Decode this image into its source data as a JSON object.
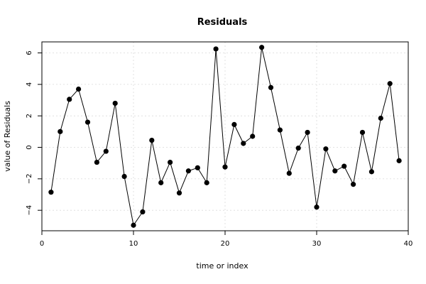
{
  "chart_data": {
    "type": "line",
    "title": "Residuals",
    "xlabel": "time or index",
    "ylabel": "value of Residuals",
    "xlim": [
      0,
      40
    ],
    "ylim": [
      -5.3,
      6.7
    ],
    "x_ticks": [
      0,
      10,
      20,
      30,
      40
    ],
    "y_ticks": [
      -4,
      -2,
      0,
      2,
      4,
      6
    ],
    "grid": true,
    "series": [
      {
        "x": [
          1,
          2,
          3,
          4,
          5,
          6,
          7,
          8,
          9,
          10,
          11,
          12,
          13,
          14,
          15,
          16,
          17,
          18,
          19,
          20,
          21,
          22,
          23,
          24,
          25,
          26,
          27,
          28,
          29,
          30,
          31,
          32,
          33,
          34,
          35,
          36,
          37,
          38,
          39
        ],
        "values": [
          -2.85,
          1.0,
          3.05,
          3.7,
          1.6,
          -0.95,
          -0.25,
          2.8,
          -1.85,
          -4.95,
          -4.1,
          0.45,
          -2.25,
          -0.95,
          -2.9,
          -1.5,
          -1.3,
          -2.25,
          6.25,
          -1.25,
          1.45,
          0.25,
          0.7,
          6.35,
          3.8,
          1.1,
          -1.65,
          -0.05,
          0.95,
          -3.8,
          -0.1,
          -1.5,
          -1.2,
          -2.35,
          0.95,
          -1.55,
          1.85,
          4.05,
          -0.85
        ]
      }
    ],
    "colors": {
      "line": "#000000",
      "points": "#000000",
      "grid": "#d9d9d9",
      "axis": "#000000"
    }
  }
}
